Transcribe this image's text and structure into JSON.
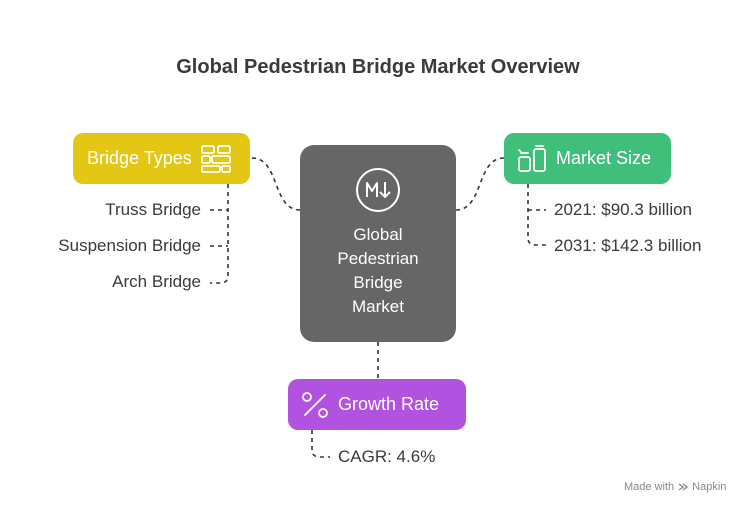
{
  "title": "Global Pedestrian Bridge Market Overview",
  "center": {
    "label_lines": [
      "Global",
      "Pedestrian",
      "Bridge",
      "Market"
    ],
    "icon": "m-down-arrow-icon"
  },
  "bridge_types": {
    "label": "Bridge Types",
    "icon": "bricks-icon",
    "color": "#e3c714",
    "items": [
      "Truss Bridge",
      "Suspension Bridge",
      "Arch Bridge"
    ]
  },
  "market_size": {
    "label": "Market Size",
    "icon": "bins-icon",
    "color": "#3fbf7a",
    "items": [
      "2021: $90.3 billion",
      "2031: $142.3 billion"
    ]
  },
  "growth_rate": {
    "label": "Growth Rate",
    "icon": "percent-icon",
    "color": "#b252e0",
    "items": [
      "CAGR: 4.6%"
    ]
  },
  "watermark": {
    "made_with": "Made with",
    "brand": "Napkin"
  }
}
